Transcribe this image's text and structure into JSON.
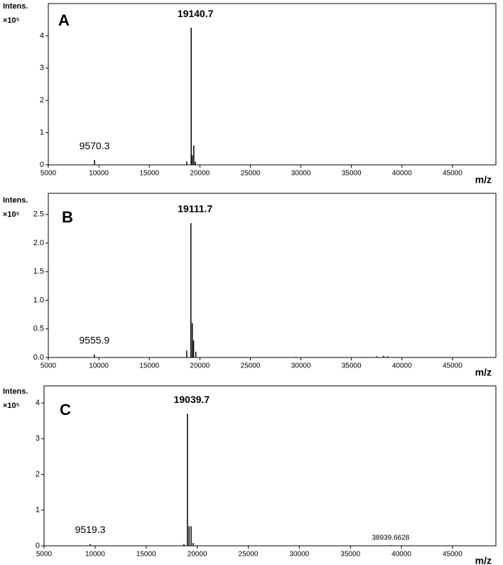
{
  "chart_data": [
    {
      "type": "stem",
      "panel_label": "A",
      "ylabel": "Intens.",
      "yscale_label": "×10⁵",
      "xlabel": "m/z",
      "color": "#000000",
      "x": [
        9570.3,
        18700,
        19140.7,
        19250,
        19400,
        19550
      ],
      "values": [
        0.15,
        0.1,
        4.25,
        0.3,
        0.6,
        0.1
      ],
      "xlim": [
        5000,
        49300
      ],
      "ylim": [
        0,
        5
      ],
      "xticks": [
        5000,
        10000,
        15000,
        20000,
        25000,
        30000,
        35000,
        40000,
        45000
      ],
      "yticks": [
        0,
        1,
        2,
        3,
        4
      ],
      "annotations": [
        {
          "text": "19140.7",
          "x": 19140.7
        },
        {
          "text": "9570.3",
          "x": 9570.3
        }
      ]
    },
    {
      "type": "stem",
      "panel_label": "B",
      "ylabel": "Intens.",
      "yscale_label": "×10⁵",
      "xlabel": "m/z",
      "color": "#000000",
      "x": [
        9555.9,
        18700,
        19111.7,
        19250,
        19380,
        19600,
        29500,
        37500,
        38200,
        38600
      ],
      "values": [
        0.05,
        0.12,
        2.35,
        0.6,
        0.3,
        0.1,
        0.01,
        0.02,
        0.03,
        0.02
      ],
      "xlim": [
        5000,
        49300
      ],
      "ylim": [
        0,
        2.87
      ],
      "xticks": [
        5000,
        10000,
        15000,
        20000,
        25000,
        30000,
        35000,
        40000,
        45000
      ],
      "yticks": [
        {
          "value": 0,
          "label": "0.0"
        },
        0.5,
        {
          "value": 1,
          "label": "1.0"
        },
        1.5,
        {
          "value": 2,
          "label": "2.0"
        },
        2.5
      ],
      "annotations": [
        {
          "text": "19111.7",
          "x": 19111.7
        },
        {
          "text": "9555.9",
          "x": 9555.9
        }
      ]
    },
    {
      "type": "stem",
      "panel_label": "C",
      "ylabel": "Intens.",
      "yscale_label": "×10⁵",
      "xlabel": "m/z",
      "color": "#000000",
      "x": [
        9519.3,
        18700,
        19039.7,
        19200,
        19400,
        19600,
        38939.6628
      ],
      "values": [
        0.05,
        0.05,
        3.7,
        0.55,
        0.55,
        0.08,
        0.02
      ],
      "xlim": [
        5000,
        49250
      ],
      "ylim": [
        0,
        4.48
      ],
      "xticks": [
        5000,
        10000,
        15000,
        20000,
        25000,
        30000,
        35000,
        40000,
        45000
      ],
      "yticks": [
        0,
        1,
        2,
        3,
        4
      ],
      "annotations": [
        {
          "text": "19039.7",
          "x": 19039.7
        },
        {
          "text": "9519.3",
          "x": 9519.3
        },
        {
          "text": "38939.6628",
          "x": 38939.6628
        }
      ]
    }
  ]
}
